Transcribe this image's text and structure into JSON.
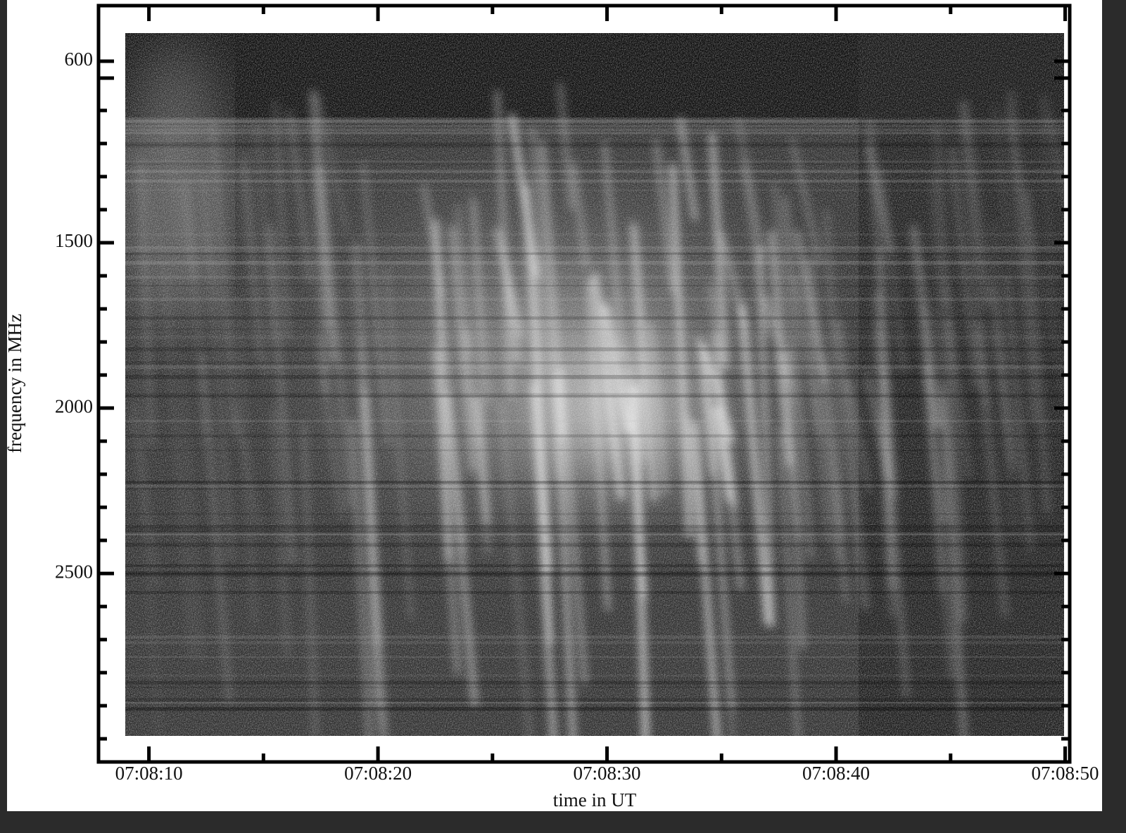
{
  "chart_data": {
    "type": "spectrogram",
    "xlabel": "time in UT",
    "ylabel": "frequency in MHz",
    "xlim": [
      25687.8,
      25730.2
    ],
    "xticks": [
      {
        "value": 25690,
        "label": "07:08:10"
      },
      {
        "value": 25700,
        "label": "07:08:20"
      },
      {
        "value": 25710,
        "label": "07:08:30"
      },
      {
        "value": 25720,
        "label": "07:08:40"
      },
      {
        "value": 25730,
        "label": "07:08:50"
      }
    ],
    "ylim": [
      783,
      3070
    ],
    "yticks": [
      600,
      1500,
      2000,
      2500
    ],
    "y_reversed": true,
    "y_break": true
  }
}
